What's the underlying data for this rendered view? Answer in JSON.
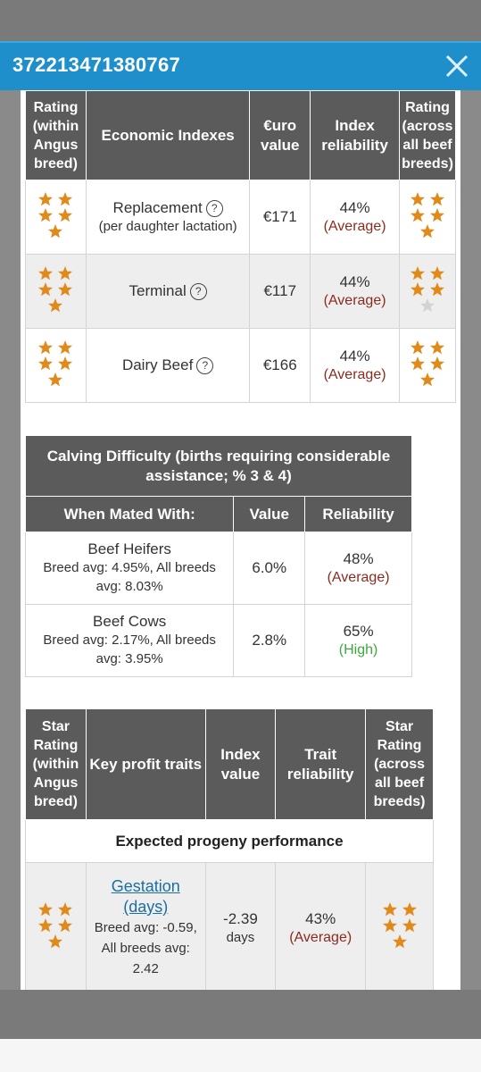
{
  "modal": {
    "title": "372213471380767"
  },
  "economic": {
    "headers": {
      "rating_within": "Rating (within Angus breed)",
      "index": "Economic Indexes",
      "euro": "€uro value",
      "reliability": "Index reliability",
      "rating_across": "Rating (across all beef breeds)"
    },
    "rows": [
      {
        "name": "Replacement",
        "sub": "(per daughter lactation)",
        "value": "€171",
        "rel": "44%",
        "rel_label": "(Average)",
        "stars_within": 5,
        "stars_across": 5
      },
      {
        "name": "Terminal",
        "sub": "",
        "value": "€117",
        "rel": "44%",
        "rel_label": "(Average)",
        "stars_within": 5,
        "stars_across": 4
      },
      {
        "name": "Dairy Beef",
        "sub": "",
        "value": "€166",
        "rel": "44%",
        "rel_label": "(Average)",
        "stars_within": 5,
        "stars_across": 5
      }
    ]
  },
  "calving": {
    "title": "Calving Difficulty (births requiring considerable assistance; % 3 & 4)",
    "headers": {
      "mated": "When Mated With:",
      "value": "Value",
      "reliability": "Reliability"
    },
    "rows": [
      {
        "name": "Beef Heifers",
        "sub": "Breed avg: 4.95%, All breeds avg: 8.03%",
        "value": "6.0%",
        "rel": "48%",
        "rel_label": "(Average)"
      },
      {
        "name": "Beef Cows",
        "sub": "Breed avg: 2.17%, All breeds avg: 3.95%",
        "value": "2.8%",
        "rel": "65%",
        "rel_label": "(High)"
      }
    ]
  },
  "traits": {
    "headers": {
      "rating_within": "Star Rating (within Angus breed)",
      "key": "Key profit traits",
      "index": "Index value",
      "reliability": "Trait reliability",
      "rating_across": "Star Rating (across all beef breeds)"
    },
    "section": "Expected progeny performance",
    "rows": [
      {
        "name": "Gestation (days)",
        "sub": "Breed avg: -0.59, All breeds avg: 2.42",
        "value": "-2.39",
        "unit": "days",
        "rel": "43%",
        "rel_label": "(Average)",
        "stars_within": 5,
        "stars_across": 5
      }
    ]
  },
  "icons": {
    "close": "close-icon",
    "help": "question-circle-icon",
    "star": "star-icon"
  },
  "colors": {
    "header_bar": "#1f8fcc",
    "table_header": "#5b5b5b",
    "star_gold": "#e08a1c",
    "star_empty": "#d3d3d3",
    "avg_text": "#8b2b1e",
    "high_text": "#3ea83e"
  }
}
